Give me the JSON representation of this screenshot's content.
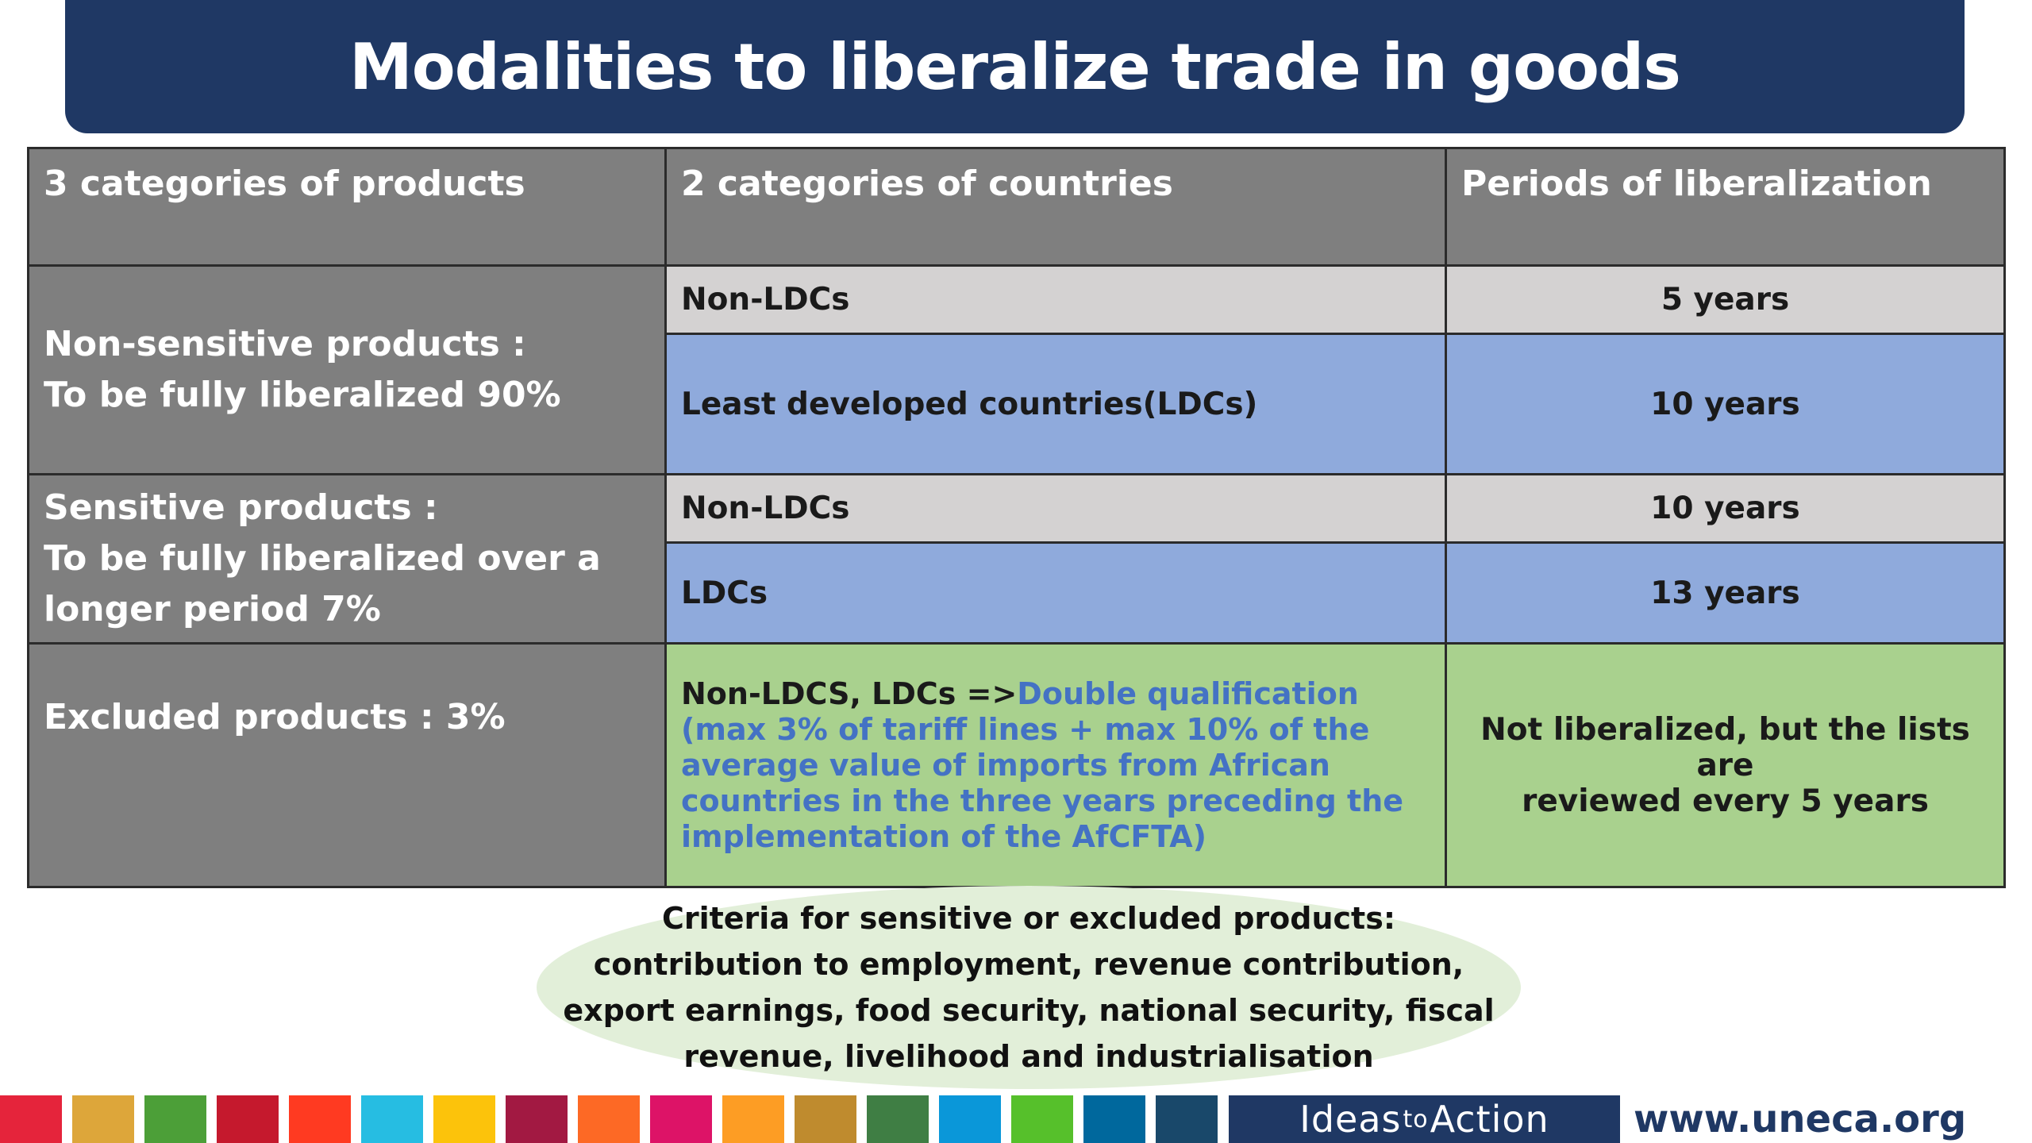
{
  "title": "Modalities to liberalize trade in goods",
  "table": {
    "headers": [
      "3 categories of products",
      "2 categories of countries",
      "Periods of liberalization"
    ],
    "non_sensitive": {
      "label_line1": "Non-sensitive products :",
      "label_line2": "To be fully liberalized 90%",
      "rows": [
        {
          "country": "Non-LDCs",
          "period": "5 years"
        },
        {
          "country": "Least developed countries(LDCs)",
          "period": "10 years"
        }
      ]
    },
    "sensitive": {
      "label_line1": "Sensitive products :",
      "label_line2": "To be fully liberalized over a",
      "label_line3": "longer period 7%",
      "rows": [
        {
          "country": "Non-LDCs",
          "period": "10 years"
        },
        {
          "country": "LDCs",
          "period": "13 years"
        }
      ]
    },
    "excluded": {
      "label": "Excluded products : 3%",
      "qualification_prefix": "Non-LDCS, LDCs =>",
      "qualification_highlight_line1": "Double qualification",
      "qualification_highlight_line2": "(max 3% of tariff lines + max 10% of the",
      "qualification_highlight_line3": "average value of imports from African",
      "qualification_highlight_line4": "countries in the three years preceding the",
      "qualification_highlight_line5": "implementation of the AfCFTA)",
      "period_line1": "Not liberalized, but the lists are",
      "period_line2": "reviewed every 5 years"
    }
  },
  "criteria": {
    "line1": "Criteria for sensitive or excluded products:",
    "line2": "contribution to employment, revenue contribution,",
    "line3": "export earnings, food security, national security, fiscal",
    "line4": "revenue, livelihood and industrialisation"
  },
  "footer": {
    "sdg_colors": [
      "#e5243b",
      "#dda63a",
      "#4c9f38",
      "#c5192d",
      "#ff3a21",
      "#26bde2",
      "#fcc30b",
      "#a21942",
      "#fd6925",
      "#dd1367",
      "#fd9d24",
      "#bf8b2e",
      "#3f7e44",
      "#0a97d9",
      "#56c02b",
      "#00689d",
      "#19486a"
    ],
    "ideas_part1": "Ideas",
    "ideas_part2": "to",
    "ideas_part3": "Action",
    "url": "www.uneca.org"
  },
  "colors": {
    "title_bar": "#1f3864",
    "header_grey": "#7f7f7f",
    "row_grey": "#d4d2d2",
    "row_blue": "#8faadc",
    "row_green": "#a9d18e",
    "highlight_blue": "#4472c4",
    "criteria_bg": "#e2efd9"
  }
}
